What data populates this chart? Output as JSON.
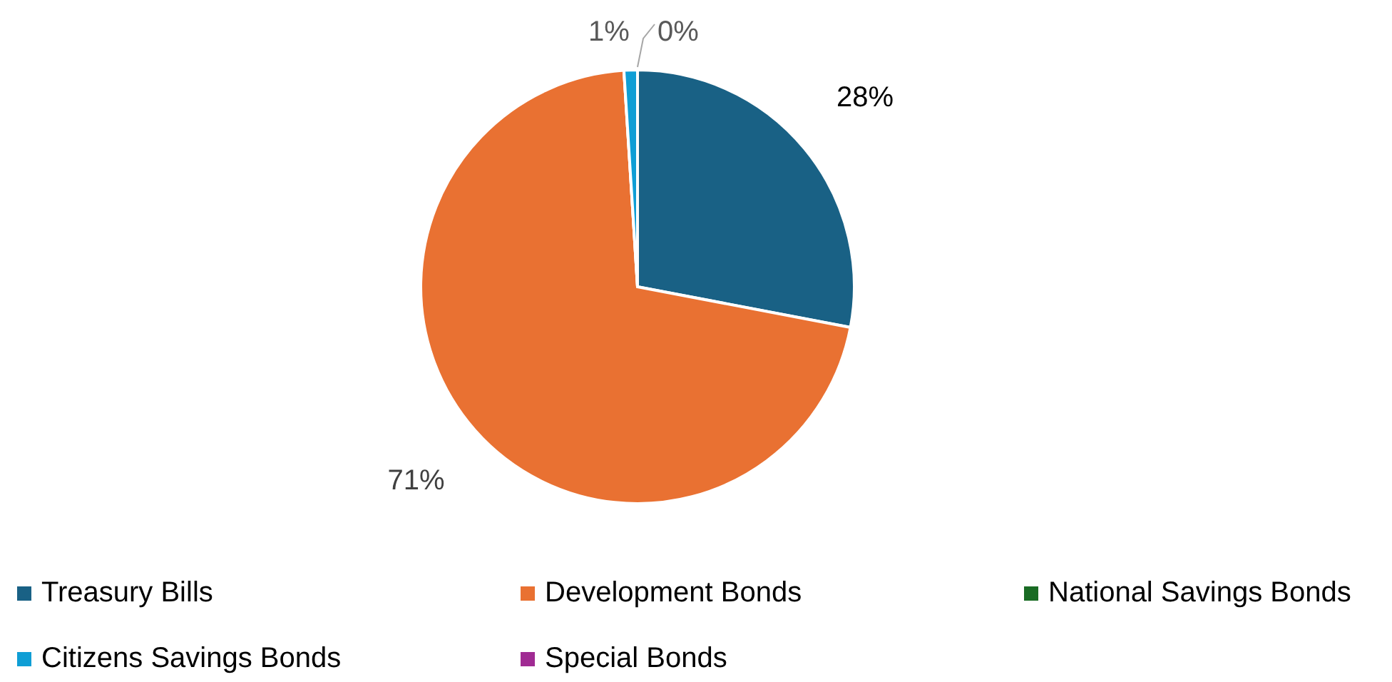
{
  "chart_data": {
    "type": "pie",
    "categories": [
      "Treasury Bills",
      "Development Bonds",
      "National Savings Bonds",
      "Citizens Savings Bonds",
      "Special Bonds"
    ],
    "values": [
      28,
      71,
      0,
      1,
      0
    ],
    "colors": [
      "#196185",
      "#e97132",
      "#196b24",
      "#0f9ed5",
      "#a02b93"
    ],
    "value_labels": [
      "28%",
      "71%",
      null,
      "1%",
      "0%"
    ],
    "legend": "bottom"
  }
}
